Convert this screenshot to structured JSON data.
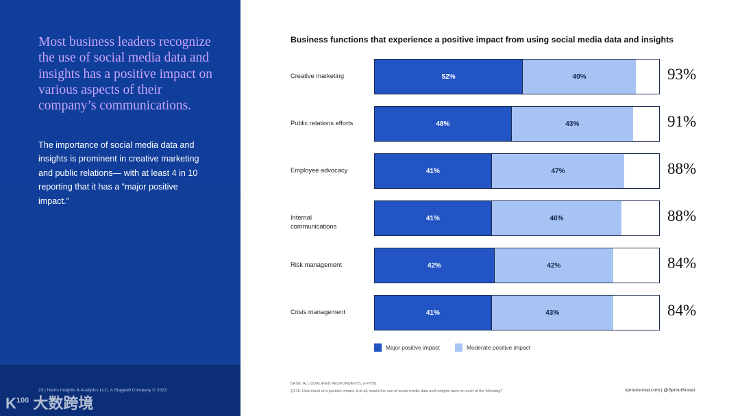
{
  "left": {
    "headline": "Most business leaders recognize the use of social media data and insights has a positive impact on various aspects of their company’s communications.",
    "body": "The importance of social media data and insights is prominent in creative marketing and public relations— with at least 4 in 10 reporting that it has a “major positive impact.”",
    "footer": "23  |  Harris Insights & Analytics LLC, A Stagwell Company © 2023",
    "watermark": "K100 大数跨境"
  },
  "chart_data": {
    "type": "bar",
    "orientation": "horizontal",
    "stacked": true,
    "title": "Business functions that experience a positive impact from using social media data and insights",
    "categories": [
      "Creative marketing",
      "Public relations efforts",
      "Employee advocacy",
      "Internal communications",
      "Risk management",
      "Crisis management"
    ],
    "series": [
      {
        "name": "Major positive impact",
        "color": "#2254c3",
        "values": [
          52,
          48,
          41,
          41,
          42,
          41
        ]
      },
      {
        "name": "Moderate positive impact",
        "color": "#a7c3f3",
        "values": [
          40,
          43,
          47,
          46,
          42,
          43
        ]
      }
    ],
    "totals": [
      93,
      91,
      88,
      88,
      84,
      84
    ],
    "xlim": [
      0,
      100
    ],
    "legend": "bottom"
  },
  "notes": {
    "base": "BASE: ALL QUALIFIED RESPONDENTS, (n=778)",
    "question": "Q215. How much of a positive impact, if at all, would the use of social media data and insights have on each of the following?",
    "site": "sproutsocial.com   |   @SproutSocial"
  }
}
